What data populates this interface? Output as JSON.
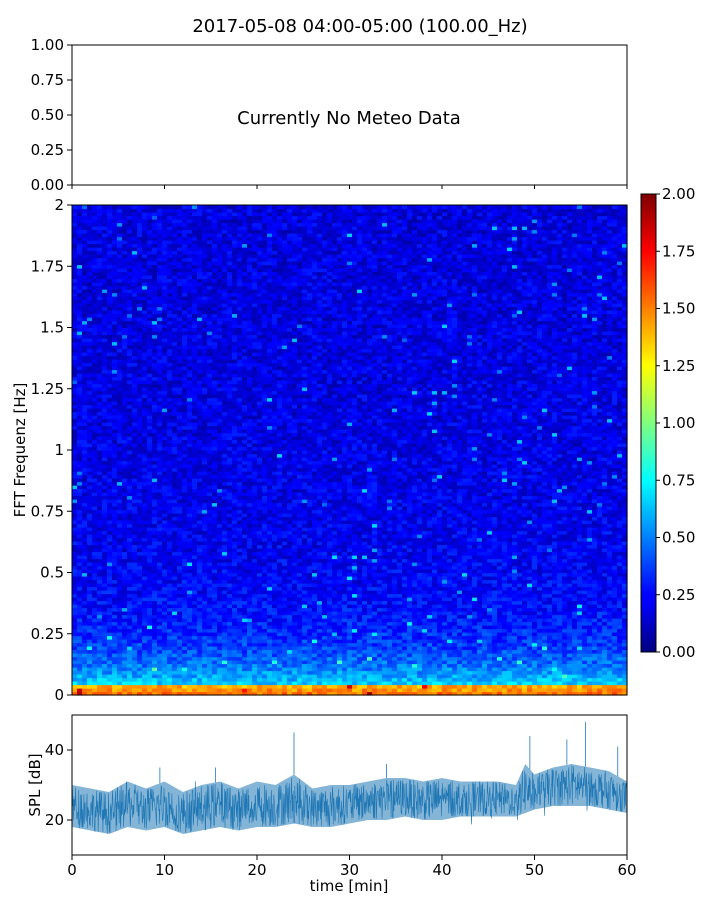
{
  "figure": {
    "title": "2017-05-08 04:00-05:00 (100.00_Hz)"
  },
  "chart_data": [
    {
      "type": "line",
      "panel": "meteo",
      "annotation": "Currently No Meteo Data",
      "ylim": [
        0,
        1
      ],
      "yticks": [
        "0.00",
        "0.25",
        "0.50",
        "0.75",
        "1.00"
      ],
      "xlim": [
        0,
        60
      ],
      "xlabel": "",
      "ylabel": ""
    },
    {
      "type": "heatmap",
      "panel": "spectrogram",
      "ylabel": "FFT Frequenz [Hz]",
      "xlim": [
        0,
        60
      ],
      "ylim": [
        0,
        2
      ],
      "yticks": [
        "0",
        "0.25",
        "0.5",
        "0.75",
        "1",
        "1.25",
        "1.5",
        "1.75",
        "2"
      ],
      "colormap": "jet",
      "colorbar": {
        "range": [
          0,
          2
        ],
        "ticks": [
          "0.00",
          "0.25",
          "0.50",
          "0.75",
          "1.00",
          "1.25",
          "1.50",
          "1.75",
          "2.00"
        ]
      }
    },
    {
      "type": "area",
      "panel": "spl",
      "ylabel": "SPL [dB]",
      "xlabel": "time [min]",
      "xlim": [
        0,
        60
      ],
      "ylim": [
        10,
        50
      ],
      "yticks": [
        "20",
        "40"
      ],
      "xticks": [
        "0",
        "10",
        "20",
        "30",
        "40",
        "50",
        "60"
      ],
      "color": "#1f77b4",
      "envelope": {
        "x": [
          0,
          2,
          4,
          6,
          8,
          10,
          12,
          14,
          16,
          18,
          20,
          22,
          24,
          26,
          28,
          30,
          32,
          34,
          36,
          38,
          40,
          42,
          44,
          46,
          48,
          49,
          50,
          52,
          54,
          56,
          58,
          60
        ],
        "low": [
          18,
          17,
          16,
          18,
          17,
          18,
          16,
          17,
          18,
          17,
          18,
          18,
          19,
          18,
          18,
          19,
          20,
          20,
          21,
          20,
          20,
          21,
          21,
          21,
          21,
          22,
          23,
          24,
          24,
          24,
          23,
          22
        ],
        "high": [
          30,
          29,
          28,
          31,
          29,
          31,
          28,
          30,
          31,
          29,
          31,
          30,
          33,
          29,
          30,
          30,
          31,
          32,
          32,
          31,
          32,
          31,
          31,
          31,
          30,
          36,
          33,
          35,
          36,
          35,
          34,
          31
        ]
      },
      "spikes": [
        {
          "x": 9.5,
          "y": 35
        },
        {
          "x": 15.5,
          "y": 35
        },
        {
          "x": 24,
          "y": 45
        },
        {
          "x": 34,
          "y": 36
        },
        {
          "x": 49.5,
          "y": 44
        },
        {
          "x": 53.5,
          "y": 43
        },
        {
          "x": 55.5,
          "y": 48
        },
        {
          "x": 59,
          "y": 41
        }
      ]
    }
  ]
}
